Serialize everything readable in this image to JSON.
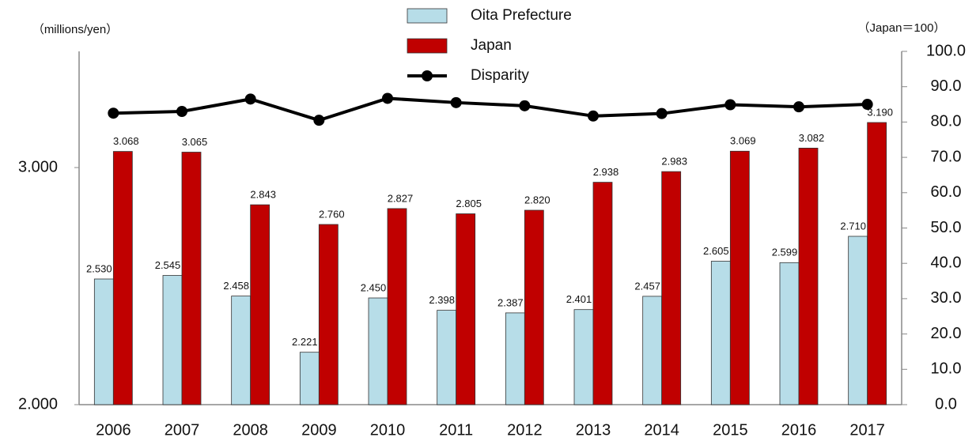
{
  "chart_data": {
    "type": "bar_line",
    "categories": [
      "2006",
      "2007",
      "2008",
      "2009",
      "2010",
      "2011",
      "2012",
      "2013",
      "2014",
      "2015",
      "2016",
      "2017"
    ],
    "y_label": "（millions/yen）",
    "y2_label": "（Japan＝100）",
    "series": [
      {
        "name": "Oita Prefecture",
        "type": "bar",
        "color": "#b7dde8",
        "values": [
          2.53,
          2.545,
          2.458,
          2.221,
          2.45,
          2.398,
          2.387,
          2.401,
          2.457,
          2.605,
          2.599,
          2.71
        ],
        "value_labels": [
          "2.530",
          "2.545",
          "2.458",
          "2.221",
          "2.450",
          "2.398",
          "2.387",
          "2.401",
          "2.457",
          "2.605",
          "2.599",
          "2.710"
        ]
      },
      {
        "name": "Japan",
        "type": "bar",
        "color": "#c00000",
        "values": [
          3.068,
          3.065,
          2.843,
          2.76,
          2.827,
          2.805,
          2.82,
          2.938,
          2.983,
          3.069,
          3.082,
          3.19
        ],
        "value_labels": [
          "3.068",
          "3.065",
          "2.843",
          "2.760",
          "2.827",
          "2.805",
          "2.820",
          "2.938",
          "2.983",
          "3.069",
          "3.082",
          "3.190"
        ]
      },
      {
        "name": "Disparity",
        "type": "line",
        "color": "#000000",
        "axis": "y2",
        "values": [
          82.5,
          83.0,
          86.5,
          80.5,
          86.7,
          85.5,
          84.6,
          81.7,
          82.4,
          84.9,
          84.3,
          85.0
        ]
      }
    ],
    "ylim": [
      2,
      3.49
    ],
    "yticks": [
      {
        "value": 2,
        "label": "2.000"
      },
      {
        "value": 3,
        "label": "3.000"
      }
    ],
    "y2lim": [
      0,
      100
    ],
    "y2ticks": [
      {
        "value": 0,
        "label": "0.0"
      },
      {
        "value": 10,
        "label": "10.0"
      },
      {
        "value": 20,
        "label": "20.0"
      },
      {
        "value": 30,
        "label": "30.0"
      },
      {
        "value": 40,
        "label": "40.0"
      },
      {
        "value": 50,
        "label": "50.0"
      },
      {
        "value": 60,
        "label": "60.0"
      },
      {
        "value": 70,
        "label": "70.0"
      },
      {
        "value": 80,
        "label": "80.0"
      },
      {
        "value": 90,
        "label": "90.0"
      },
      {
        "value": 100,
        "label": "100.0"
      }
    ],
    "grid": false
  }
}
